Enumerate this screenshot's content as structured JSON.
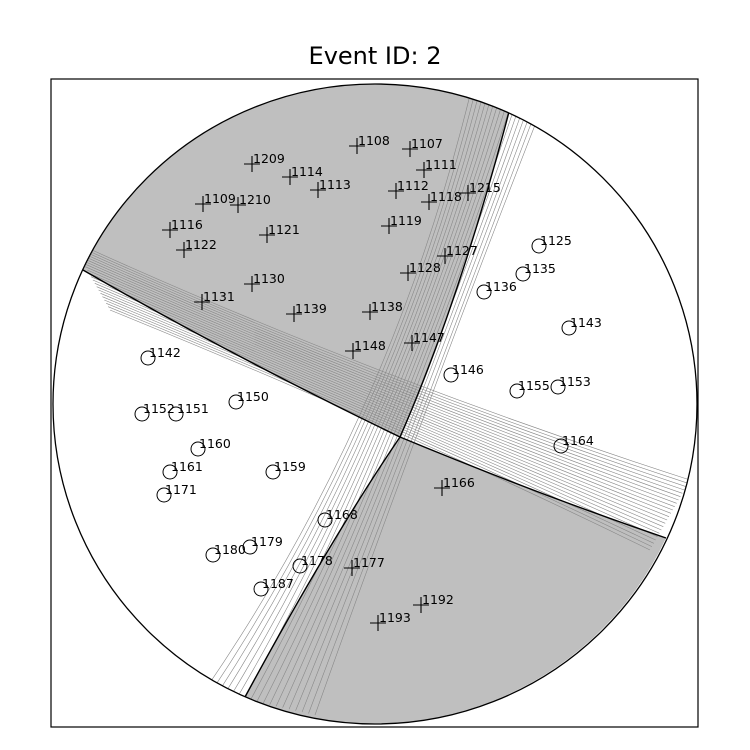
{
  "title": "Event ID: 2",
  "colors": {
    "compressional_fill": "#bfbfbf",
    "background": "#ffffff",
    "nodal_line": "#000000",
    "solution_line": "#888888"
  },
  "stations": [
    {
      "id": "1108",
      "polarity": "up"
    },
    {
      "id": "1107",
      "polarity": "up"
    },
    {
      "id": "1209",
      "polarity": "up"
    },
    {
      "id": "1114",
      "polarity": "up"
    },
    {
      "id": "1111",
      "polarity": "up"
    },
    {
      "id": "1113",
      "polarity": "up"
    },
    {
      "id": "1112",
      "polarity": "up"
    },
    {
      "id": "1215",
      "polarity": "up"
    },
    {
      "id": "1109",
      "polarity": "up"
    },
    {
      "id": "1210",
      "polarity": "up"
    },
    {
      "id": "1118",
      "polarity": "up"
    },
    {
      "id": "1116",
      "polarity": "up"
    },
    {
      "id": "1121",
      "polarity": "up"
    },
    {
      "id": "1119",
      "polarity": "up"
    },
    {
      "id": "1122",
      "polarity": "up"
    },
    {
      "id": "1127",
      "polarity": "up"
    },
    {
      "id": "1125",
      "polarity": "down"
    },
    {
      "id": "1128",
      "polarity": "up"
    },
    {
      "id": "1135",
      "polarity": "down"
    },
    {
      "id": "1130",
      "polarity": "up"
    },
    {
      "id": "1136",
      "polarity": "down"
    },
    {
      "id": "1131",
      "polarity": "up"
    },
    {
      "id": "1139",
      "polarity": "up"
    },
    {
      "id": "1138",
      "polarity": "up"
    },
    {
      "id": "1143",
      "polarity": "down"
    },
    {
      "id": "1147",
      "polarity": "up"
    },
    {
      "id": "1148",
      "polarity": "up"
    },
    {
      "id": "1142",
      "polarity": "down"
    },
    {
      "id": "1146",
      "polarity": "down"
    },
    {
      "id": "1155",
      "polarity": "down"
    },
    {
      "id": "1153",
      "polarity": "down"
    },
    {
      "id": "1150",
      "polarity": "down"
    },
    {
      "id": "1152",
      "polarity": "down"
    },
    {
      "id": "1151",
      "polarity": "down"
    },
    {
      "id": "1160",
      "polarity": "down"
    },
    {
      "id": "1164",
      "polarity": "down"
    },
    {
      "id": "1161",
      "polarity": "down"
    },
    {
      "id": "1159",
      "polarity": "down"
    },
    {
      "id": "1166",
      "polarity": "up"
    },
    {
      "id": "1171",
      "polarity": "down"
    },
    {
      "id": "1168",
      "polarity": "down"
    },
    {
      "id": "1179",
      "polarity": "down"
    },
    {
      "id": "1180",
      "polarity": "down"
    },
    {
      "id": "1178",
      "polarity": "down"
    },
    {
      "id": "1177",
      "polarity": "up"
    },
    {
      "id": "1187",
      "polarity": "down"
    },
    {
      "id": "1192",
      "polarity": "up"
    },
    {
      "id": "1193",
      "polarity": "up"
    }
  ]
}
